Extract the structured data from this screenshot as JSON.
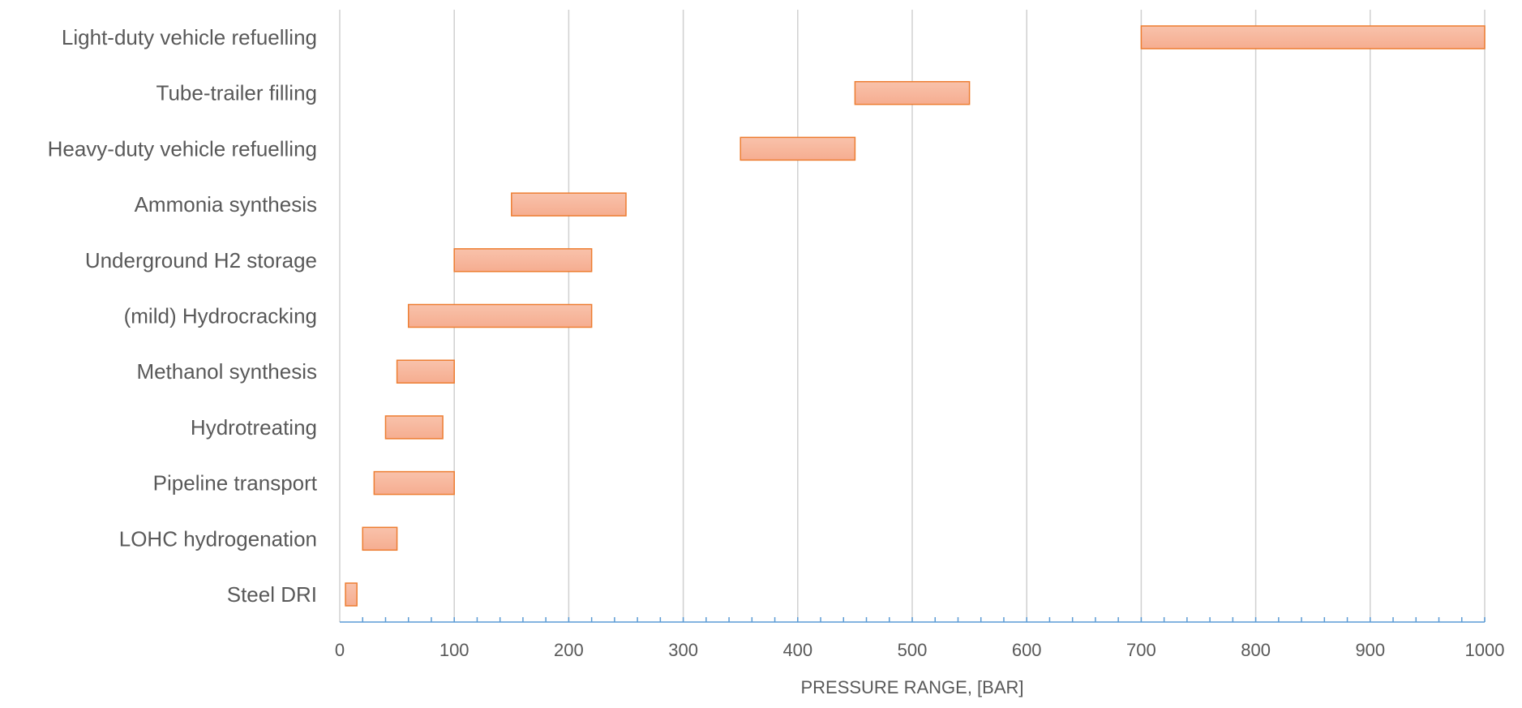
{
  "chart_data": {
    "type": "bar",
    "orientation": "horizontal-floating",
    "title": "",
    "xlabel": "PRESSURE RANGE, [BAR]",
    "ylabel": "",
    "xlim": [
      0,
      1000
    ],
    "x_ticks": [
      "0",
      "100",
      "200",
      "300",
      "400",
      "500",
      "600",
      "700",
      "800",
      "900",
      "1000"
    ],
    "x_tick_values": [
      0,
      100,
      200,
      300,
      400,
      500,
      600,
      700,
      800,
      900,
      1000
    ],
    "minor_tick_step": 20,
    "grid": true,
    "legend": "none",
    "bar_fill": "#f7b59b",
    "bar_edge": "#ed7d31",
    "axis_color": "#5b9bd5",
    "categories": [
      "Light-duty vehicle refuelling",
      "Tube-trailer filling",
      "Heavy-duty vehicle refuelling",
      "Ammonia synthesis",
      "Underground H2 storage",
      "(mild) Hydrocracking",
      "Methanol synthesis",
      "Hydrotreating",
      "Pipeline transport",
      "LOHC hydrogenation",
      "Steel DRI"
    ],
    "ranges": [
      [
        700,
        1000
      ],
      [
        450,
        550
      ],
      [
        350,
        450
      ],
      [
        150,
        250
      ],
      [
        100,
        220
      ],
      [
        60,
        220
      ],
      [
        50,
        100
      ],
      [
        40,
        90
      ],
      [
        30,
        100
      ],
      [
        20,
        50
      ],
      [
        5,
        15
      ]
    ]
  }
}
